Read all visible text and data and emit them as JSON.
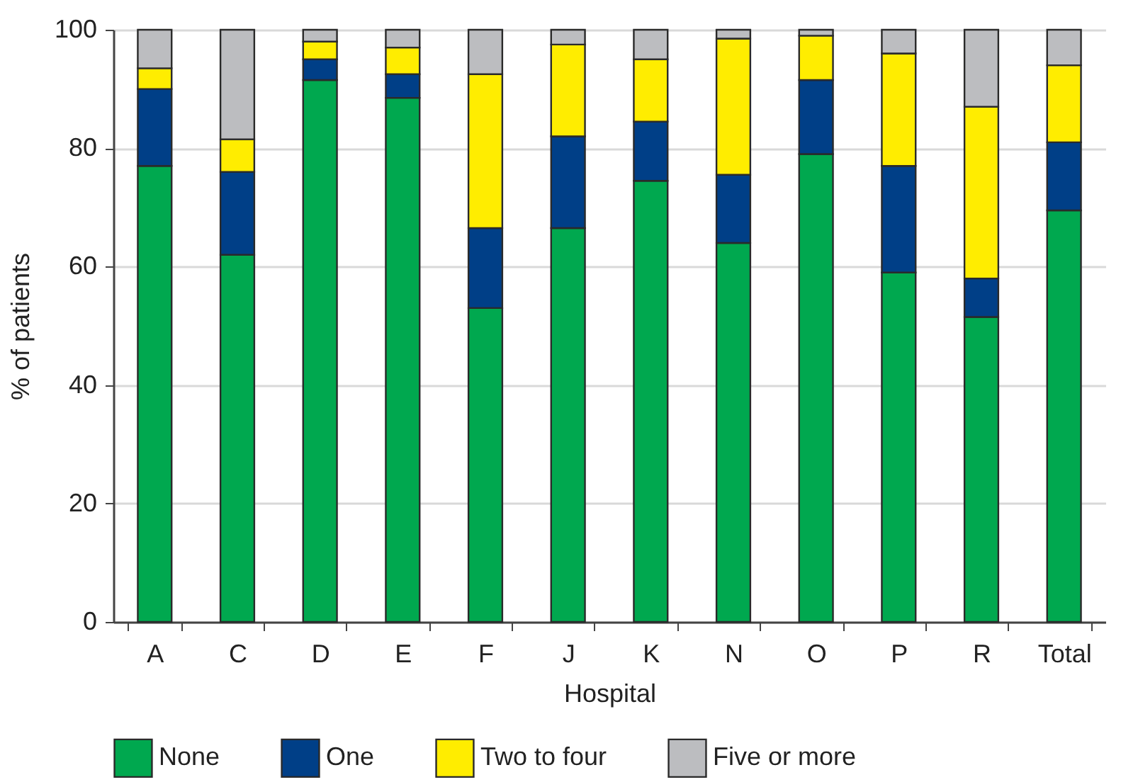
{
  "chart_data": {
    "type": "bar",
    "stacked": true,
    "xlabel": "Hospital",
    "ylabel": "% of patients",
    "categories": [
      "A",
      "C",
      "D",
      "E",
      "F",
      "J",
      "K",
      "N",
      "O",
      "P",
      "R",
      "Total"
    ],
    "series": [
      {
        "name": "None",
        "color": "#00a84f",
        "values": [
          77,
          62,
          91.5,
          88.5,
          53,
          66.5,
          74.5,
          64,
          79,
          59,
          51.5,
          69.5
        ]
      },
      {
        "name": "One",
        "color": "#003f87",
        "values": [
          13,
          14,
          3.5,
          4,
          13.5,
          15.5,
          10,
          11.5,
          12.5,
          18,
          6.5,
          11.5
        ]
      },
      {
        "name": "Two to four",
        "color": "#ffed00",
        "values": [
          3.5,
          5.5,
          3,
          4.5,
          26,
          15.5,
          10.5,
          23,
          7.5,
          19,
          29,
          13
        ]
      },
      {
        "name": "Five or more",
        "color": "#bcbdc0",
        "values": [
          6.5,
          18.5,
          2,
          3,
          7.5,
          2.5,
          5,
          1.5,
          1,
          4,
          13,
          6
        ]
      }
    ],
    "ylim": [
      0,
      100
    ],
    "yticks": [
      0,
      20,
      40,
      60,
      80,
      100
    ],
    "grid": "y",
    "legend": "bottom"
  }
}
